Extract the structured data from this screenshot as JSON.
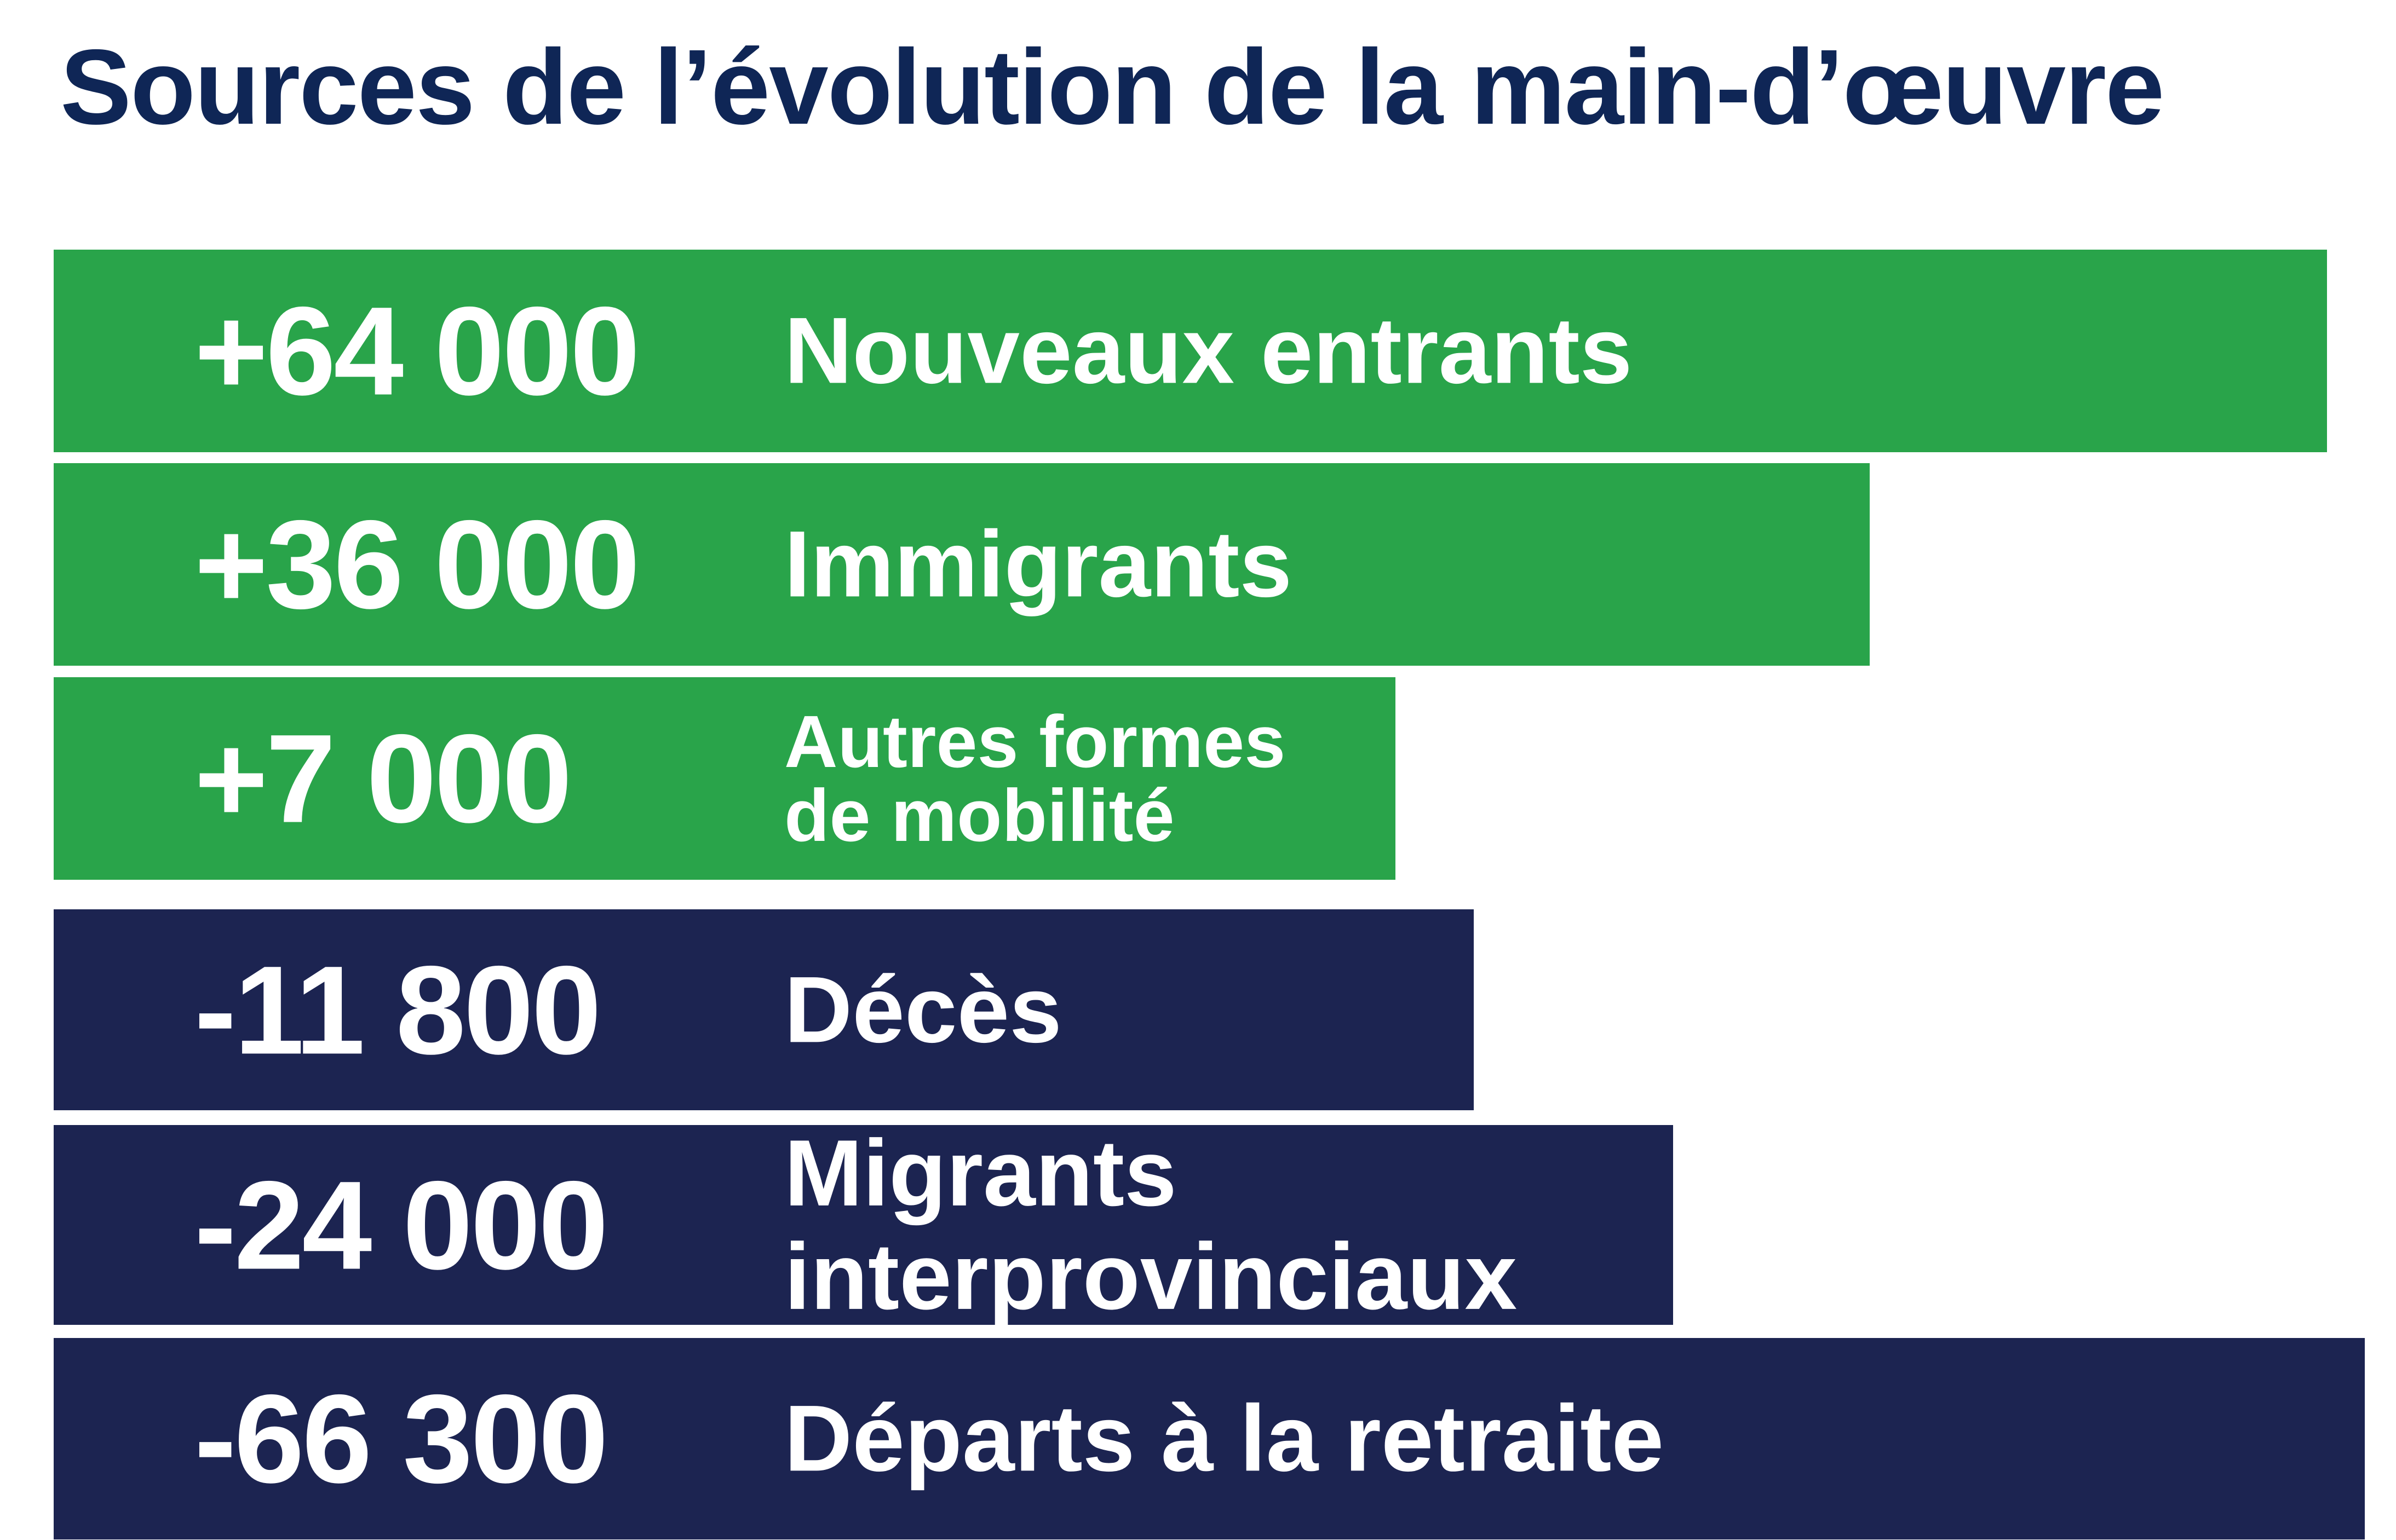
{
  "chart_data": {
    "type": "bar",
    "orientation": "horizontal",
    "title": "Sources de l’évolution de la main-d’œuvre",
    "colors": {
      "positive": "#29a44a",
      "negative": "#1c2451",
      "title": "#0f2656",
      "text": "#ffffff"
    },
    "categories": [
      "Nouveaux entrants",
      "Immigrants",
      "Autres formes\nde mobilité",
      "Décès",
      "Migrants interprovinciaux",
      "Départs à la retraite"
    ],
    "values": [
      64000,
      36000,
      7000,
      -11800,
      -24000,
      -66300
    ],
    "value_labels": [
      "+64 000",
      "+36 000",
      "+7 000",
      "-11 800",
      "-24 000",
      "-66 300"
    ]
  }
}
